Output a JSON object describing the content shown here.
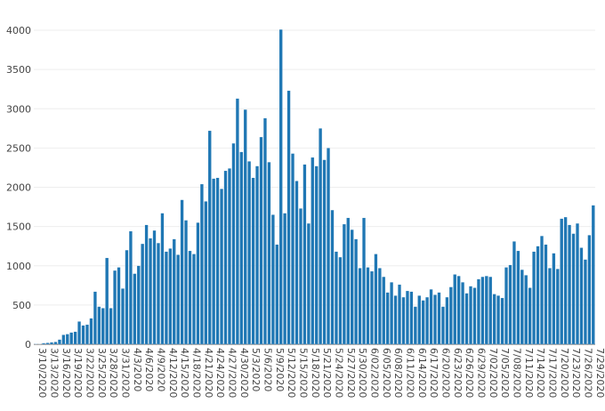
{
  "chart_data": {
    "type": "bar",
    "title": "",
    "xlabel": "",
    "ylabel": "",
    "ylim": [
      0,
      4000
    ],
    "yticks": [
      0,
      500,
      1000,
      1500,
      2000,
      2500,
      3000,
      3500,
      4000
    ],
    "grid": true,
    "color": "#1f77b4",
    "x_start": "3/10/2020",
    "x_end": "7/30/2020",
    "xtick_labels": [
      "3/10/2020",
      "3/13/2020",
      "3/16/2020",
      "3/19/2020",
      "3/22/2020",
      "3/25/2020",
      "3/28/2020",
      "3/31/2020",
      "4/3/2020",
      "4/6/2020",
      "4/9/2020",
      "4/12/2020",
      "4/15/2020",
      "4/18/2020",
      "4/21/2020",
      "4/24/2020",
      "4/27/2020",
      "4/30/2020",
      "5/3/2020",
      "5/6/2020",
      "5/9/2020",
      "5/12/2020",
      "5/15/2020",
      "5/18/2020",
      "5/21/2020",
      "5/24/2020",
      "5/27/2020",
      "5/30/2020",
      "6/02/2020",
      "6/05/2020",
      "6/08/2020",
      "6/11/2020",
      "6/14/2020",
      "6/17/2020",
      "6/20/2020",
      "6/23/2020",
      "6/26/2020",
      "6/29/2020",
      "7/02/2020",
      "7/05/2020",
      "7/08/2020",
      "7/11/2020",
      "7/14/2020",
      "7/17/2020",
      "7/20/2020",
      "7/23/2020",
      "7/26/2020",
      "7/29/2020"
    ],
    "values": [
      5,
      3,
      15,
      18,
      25,
      30,
      60,
      120,
      130,
      150,
      160,
      290,
      240,
      250,
      330,
      670,
      480,
      460,
      1100,
      460,
      940,
      980,
      710,
      1200,
      1440,
      900,
      1000,
      1280,
      1520,
      1350,
      1450,
      1290,
      1670,
      1180,
      1220,
      1340,
      1140,
      1840,
      1580,
      1190,
      1150,
      1550,
      2040,
      1820,
      2720,
      2110,
      2120,
      1980,
      2210,
      2240,
      2560,
      3130,
      2450,
      2990,
      2330,
      2120,
      2270,
      2640,
      2880,
      2320,
      1650,
      1270,
      4010,
      1670,
      3230,
      2430,
      2080,
      1730,
      2290,
      1540,
      2380,
      2270,
      2750,
      2350,
      2500,
      1710,
      1180,
      1110,
      1530,
      1610,
      1460,
      1340,
      970,
      1610,
      980,
      930,
      1150,
      970,
      860,
      660,
      790,
      620,
      760,
      600,
      680,
      670,
      480,
      620,
      560,
      600,
      700,
      630,
      660,
      480,
      600,
      730,
      890,
      870,
      790,
      650,
      740,
      720,
      830,
      860,
      870,
      860,
      640,
      620,
      590,
      980,
      1010,
      1310,
      1190,
      950,
      880,
      720,
      1180,
      1250,
      1380,
      1270,
      970,
      1160,
      960,
      1600,
      1620,
      1520,
      1410,
      1540,
      1230,
      1080,
      1390,
      1770
    ]
  }
}
